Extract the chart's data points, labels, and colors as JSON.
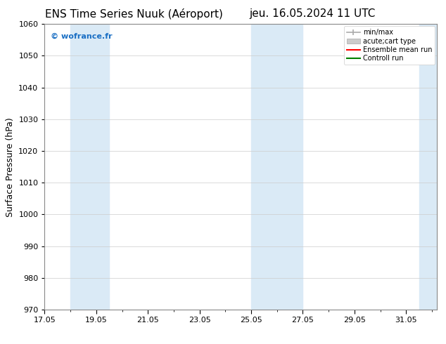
{
  "title_left": "ENS Time Series Nuuk (Aéroport)",
  "title_right": "jeu. 16.05.2024 11 UTC",
  "ylabel": "Surface Pressure (hPa)",
  "ylim": [
    970,
    1060
  ],
  "yticks": [
    970,
    980,
    990,
    1000,
    1010,
    1020,
    1030,
    1040,
    1050,
    1060
  ],
  "xlim_start": 17.0,
  "xlim_end": 32.2,
  "xtick_labels": [
    "17.05",
    "19.05",
    "21.05",
    "23.05",
    "25.05",
    "27.05",
    "29.05",
    "31.05"
  ],
  "xtick_positions": [
    17.0,
    19.0,
    21.0,
    23.0,
    25.0,
    27.0,
    29.0,
    31.0
  ],
  "shaded_bands": [
    {
      "x_start": 18.0,
      "x_end": 19.5
    },
    {
      "x_start": 25.0,
      "x_end": 27.0
    },
    {
      "x_start": 31.5,
      "x_end": 32.5
    }
  ],
  "shade_color": "#daeaf6",
  "watermark_text": "© wofrance.fr",
  "watermark_color": "#1a6fc4",
  "legend_labels": [
    "min/max",
    "acute;cart type",
    "Ensemble mean run",
    "Controll run"
  ],
  "legend_line_colors": [
    "#aaaaaa",
    "#cccccc",
    "red",
    "green"
  ],
  "background_color": "#ffffff",
  "grid_color": "#cccccc",
  "title_fontsize": 11,
  "axis_label_fontsize": 9,
  "tick_fontsize": 8,
  "legend_fontsize": 7,
  "watermark_fontsize": 8
}
